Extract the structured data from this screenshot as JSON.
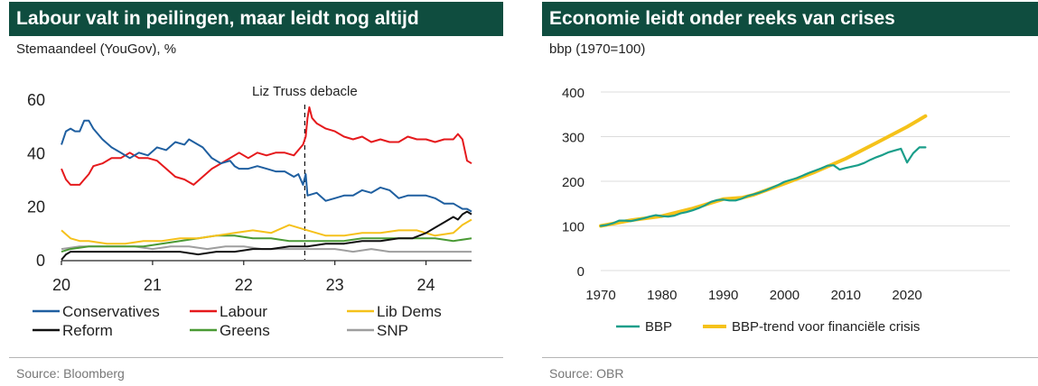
{
  "charts": [
    {
      "title": "Labour valt in peilingen, maar leidt nog altijd",
      "subtitle": "Stemaandeel (YouGov), %",
      "source": "Source: Bloomberg"
    },
    {
      "title": "Economie leidt onder reeks van crises",
      "subtitle": "bbp (1970=100)",
      "source": "Source: OBR"
    }
  ],
  "chart_data": [
    {
      "type": "line",
      "title": "Labour valt in peilingen, maar leidt nog altijd",
      "ylabel": "Stemaandeel (YouGov), %",
      "xlim": [
        20,
        24.5
      ],
      "ylim": [
        0,
        60
      ],
      "x_ticks": [
        "20",
        "21",
        "22",
        "23",
        "24"
      ],
      "y_ticks": [
        "0",
        "20",
        "40",
        "60"
      ],
      "grid": false,
      "legend_position": "bottom",
      "annotation": {
        "text": "Liz Truss debacle",
        "x": 22.67
      },
      "series": [
        {
          "name": "Conservatives",
          "color": "#1f5fa0",
          "x": [
            20.0,
            20.05,
            20.1,
            20.15,
            20.2,
            20.25,
            20.3,
            20.35,
            20.45,
            20.55,
            20.65,
            20.75,
            20.85,
            20.95,
            21.05,
            21.15,
            21.25,
            21.35,
            21.4,
            21.45,
            21.55,
            21.65,
            21.75,
            21.85,
            21.9,
            21.95,
            22.05,
            22.15,
            22.25,
            22.35,
            22.45,
            22.55,
            22.6,
            22.65,
            22.68,
            22.7,
            22.8,
            22.9,
            23.0,
            23.1,
            23.2,
            23.3,
            23.4,
            23.5,
            23.6,
            23.7,
            23.8,
            23.9,
            24.0,
            24.1,
            24.2,
            24.3,
            24.35,
            24.4,
            24.45,
            24.5
          ],
          "y": [
            43,
            48,
            49,
            48,
            48,
            52,
            52,
            49,
            45,
            42,
            40,
            38,
            40,
            39,
            42,
            41,
            44,
            43,
            45,
            44,
            42,
            38,
            36,
            37,
            35,
            34,
            34,
            35,
            34,
            33,
            33,
            31,
            32,
            28,
            32,
            24,
            25,
            22,
            23,
            24,
            24,
            26,
            25,
            27,
            26,
            23,
            24,
            24,
            24,
            23,
            21,
            21,
            20,
            19,
            19,
            18
          ]
        },
        {
          "name": "Labour",
          "color": "#e5191c",
          "x": [
            20.0,
            20.05,
            20.1,
            20.2,
            20.25,
            20.3,
            20.35,
            20.45,
            20.55,
            20.65,
            20.75,
            20.85,
            20.95,
            21.05,
            21.15,
            21.25,
            21.35,
            21.45,
            21.55,
            21.65,
            21.75,
            21.85,
            21.95,
            22.05,
            22.15,
            22.25,
            22.35,
            22.45,
            22.55,
            22.6,
            22.65,
            22.68,
            22.7,
            22.72,
            22.75,
            22.8,
            22.9,
            23.0,
            23.1,
            23.2,
            23.3,
            23.4,
            23.5,
            23.6,
            23.7,
            23.8,
            23.9,
            24.0,
            24.1,
            24.2,
            24.3,
            24.35,
            24.4,
            24.45,
            24.5
          ],
          "y": [
            34,
            30,
            28,
            28,
            30,
            32,
            35,
            36,
            38,
            38,
            40,
            38,
            38,
            37,
            34,
            31,
            30,
            28,
            31,
            34,
            36,
            38,
            40,
            38,
            40,
            39,
            40,
            40,
            39,
            41,
            43,
            46,
            53,
            57,
            53,
            51,
            49,
            48,
            46,
            45,
            46,
            44,
            45,
            44,
            44,
            46,
            45,
            45,
            44,
            45,
            45,
            47,
            45,
            37,
            36
          ]
        },
        {
          "name": "Lib Dems",
          "color": "#f5c11b",
          "x": [
            20.0,
            20.1,
            20.2,
            20.3,
            20.5,
            20.7,
            20.9,
            21.1,
            21.3,
            21.5,
            21.7,
            21.9,
            22.1,
            22.3,
            22.5,
            22.7,
            22.9,
            23.1,
            23.3,
            23.5,
            23.7,
            23.9,
            24.1,
            24.3,
            24.4,
            24.5
          ],
          "y": [
            11,
            8,
            7,
            7,
            6,
            6,
            7,
            7,
            8,
            8,
            9,
            10,
            11,
            10,
            13,
            11,
            9,
            9,
            10,
            10,
            11,
            11,
            9,
            10,
            13,
            15
          ]
        },
        {
          "name": "Reform",
          "color": "#111111",
          "x": [
            20.0,
            20.05,
            20.1,
            20.3,
            20.5,
            20.7,
            20.9,
            21.1,
            21.3,
            21.5,
            21.7,
            21.9,
            22.1,
            22.3,
            22.5,
            22.7,
            22.9,
            23.1,
            23.3,
            23.5,
            23.7,
            23.85,
            24.0,
            24.1,
            24.2,
            24.3,
            24.35,
            24.4,
            24.45,
            24.5
          ],
          "y": [
            0,
            2,
            3,
            3,
            3,
            3,
            3,
            3,
            3,
            2,
            3,
            3,
            4,
            4,
            5,
            5,
            6,
            6,
            7,
            7,
            8,
            8,
            10,
            12,
            14,
            16,
            15,
            17,
            18,
            17
          ]
        },
        {
          "name": "Greens",
          "color": "#4a9a35",
          "x": [
            20.0,
            20.1,
            20.3,
            20.5,
            20.7,
            20.9,
            21.1,
            21.3,
            21.5,
            21.7,
            21.9,
            22.1,
            22.3,
            22.5,
            22.7,
            22.9,
            23.1,
            23.3,
            23.5,
            23.7,
            23.9,
            24.1,
            24.3,
            24.5
          ],
          "y": [
            3,
            4,
            5,
            5,
            5,
            5,
            6,
            7,
            8,
            9,
            9,
            8,
            8,
            7,
            7,
            7,
            7,
            8,
            8,
            8,
            8,
            8,
            7,
            8
          ]
        },
        {
          "name": "SNP",
          "color": "#9e9e9e",
          "x": [
            20.0,
            20.2,
            20.4,
            20.6,
            20.8,
            21.0,
            21.2,
            21.4,
            21.6,
            21.8,
            22.0,
            22.2,
            22.4,
            22.6,
            22.8,
            23.0,
            23.2,
            23.4,
            23.6,
            23.8,
            24.0,
            24.2,
            24.4,
            24.5
          ],
          "y": [
            4,
            5,
            5,
            5,
            5,
            4,
            5,
            5,
            4,
            5,
            5,
            4,
            4,
            4,
            4,
            4,
            3,
            4,
            3,
            3,
            3,
            3,
            3,
            3
          ]
        }
      ]
    },
    {
      "type": "line",
      "title": "Economie leidt onder reeks van crises",
      "ylabel": "bbp (1970=100)",
      "xlim": [
        1970,
        2025
      ],
      "ylim": [
        0,
        400
      ],
      "x_ticks": [
        "1970",
        "1980",
        "1990",
        "2000",
        "2010",
        "2020"
      ],
      "y_ticks": [
        "0",
        "100",
        "200",
        "300",
        "400"
      ],
      "grid": true,
      "legend_position": "bottom",
      "series": [
        {
          "name": "BBP",
          "color": "#1a9e8a",
          "x": [
            1970,
            1971,
            1972,
            1973,
            1974,
            1975,
            1976,
            1977,
            1978,
            1979,
            1980,
            1981,
            1982,
            1983,
            1984,
            1985,
            1986,
            1987,
            1988,
            1989,
            1990,
            1991,
            1992,
            1993,
            1994,
            1995,
            1996,
            1997,
            1998,
            1999,
            2000,
            2001,
            2002,
            2003,
            2004,
            2005,
            2006,
            2007,
            2008,
            2009,
            2010,
            2011,
            2012,
            2013,
            2014,
            2015,
            2016,
            2017,
            2018,
            2019,
            2020,
            2021,
            2022,
            2023
          ],
          "y": [
            100,
            102,
            106,
            112,
            112,
            111,
            114,
            117,
            121,
            124,
            122,
            121,
            123,
            128,
            131,
            135,
            140,
            146,
            154,
            158,
            159,
            157,
            157,
            161,
            167,
            171,
            175,
            180,
            186,
            192,
            199,
            203,
            207,
            213,
            219,
            224,
            229,
            235,
            236,
            226,
            230,
            233,
            236,
            241,
            248,
            254,
            259,
            265,
            269,
            273,
            242,
            263,
            276,
            276
          ]
        },
        {
          "name": "BBP-trend voor financiële crisis",
          "color": "#f5c21a",
          "x": [
            1970,
            1975,
            1980,
            1985,
            1990,
            1993,
            1995,
            2000,
            2005,
            2010,
            2015,
            2020,
            2023
          ],
          "y": [
            100,
            113,
            122,
            139,
            160,
            163,
            170,
            195,
            221,
            251,
            286,
            322,
            346
          ]
        }
      ]
    }
  ]
}
